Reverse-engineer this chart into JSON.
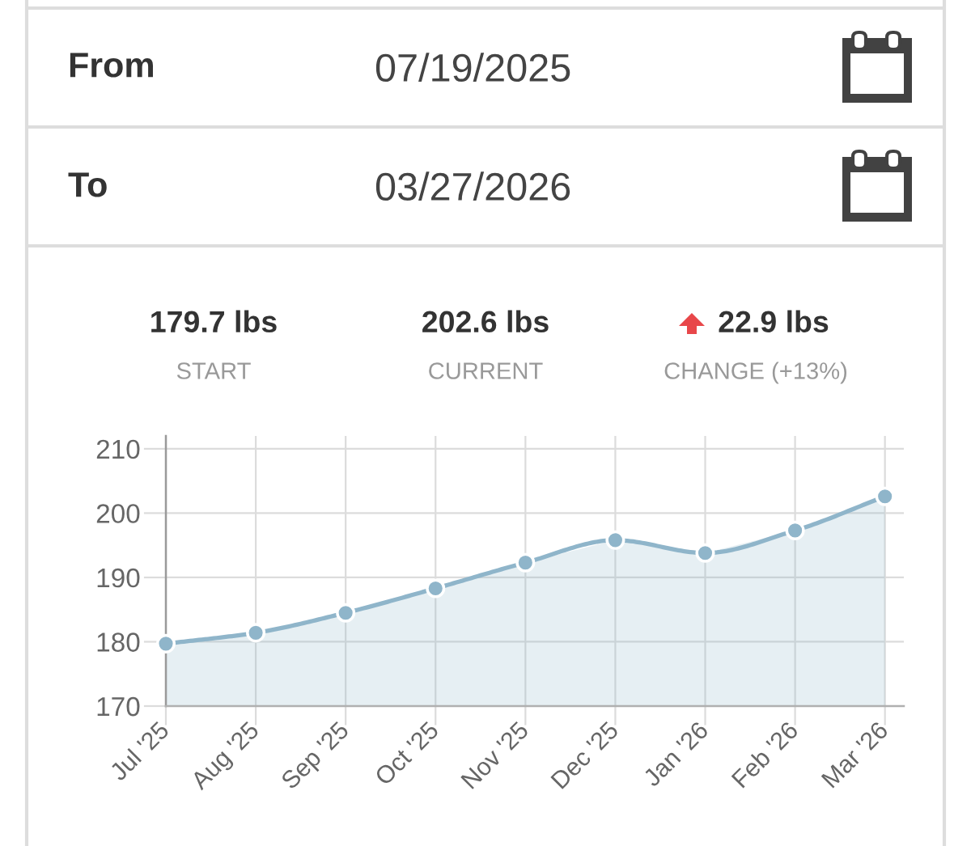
{
  "chart_data": {
    "type": "area",
    "categories": [
      "Jul '25",
      "Aug '25",
      "Sep '25",
      "Oct '25",
      "Nov '25",
      "Dec '25",
      "Jan '26",
      "Feb '26",
      "Mar '26"
    ],
    "series": [
      {
        "color": "#8fb5ca",
        "values": [
          179.7,
          181.4,
          184.5,
          188.3,
          192.3,
          195.8,
          193.8,
          197.3,
          202.6
        ]
      }
    ],
    "ylim": [
      170,
      212
    ],
    "yticks": [
      170,
      180,
      190,
      200,
      210
    ],
    "grid": true,
    "marker": "circle",
    "line_style": "solid",
    "annotations": [
      "From",
      "07/19/2025",
      "To",
      "03/27/2026",
      "179.7 lbs",
      "START",
      "202.6 lbs",
      "CURRENT",
      "22.9 lbs",
      "CHANGE (+13%)"
    ]
  }
}
